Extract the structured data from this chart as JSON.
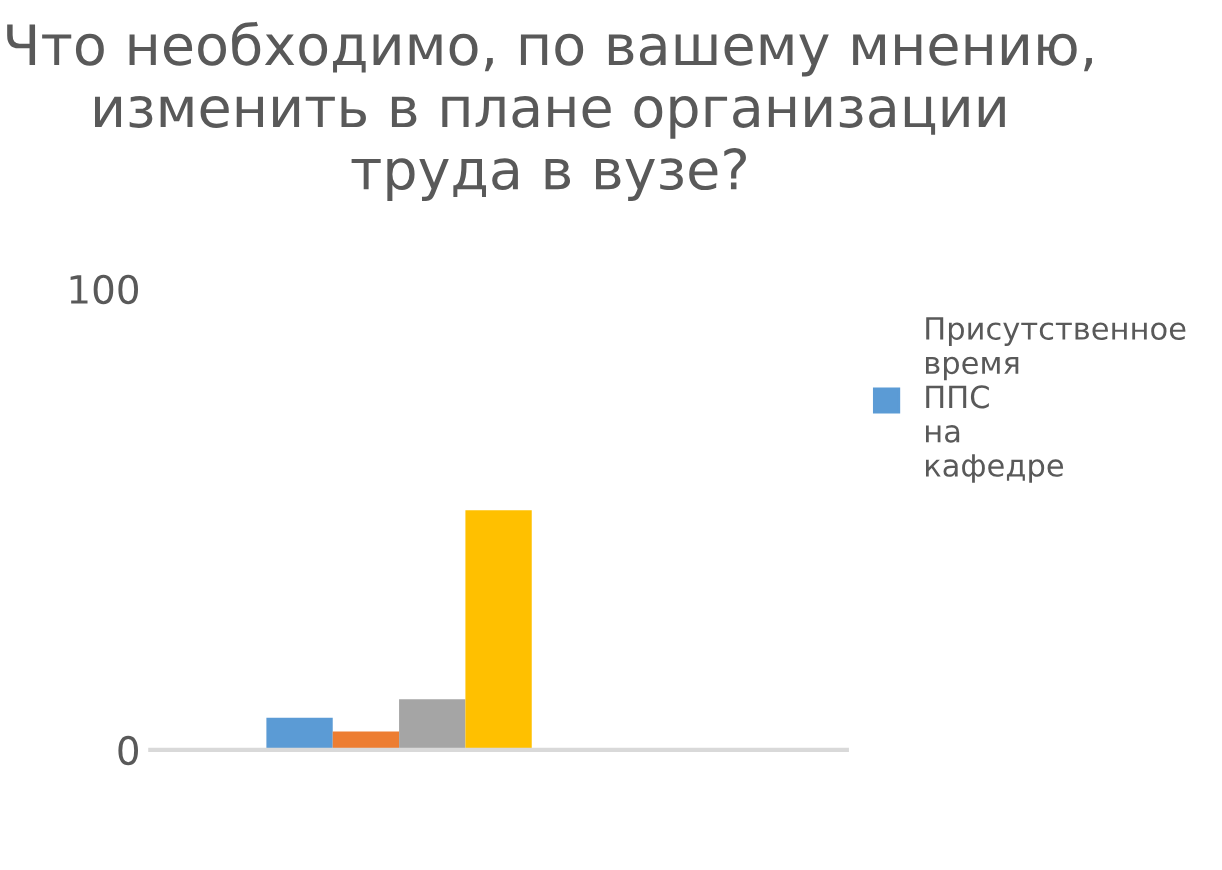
{
  "chart_data": {
    "type": "bar",
    "title": "Что необходимо, по вашему мнению, изменить в плане организации труда в вузе?",
    "categories": [
      null
    ],
    "series": [
      {
        "name": "Присутственное время ППС на кафедре",
        "color": "#5b9bd5",
        "values": [
          7
        ]
      },
      {
        "color": "#ed7d31",
        "values": [
          4
        ]
      },
      {
        "color": "#a5a5a5",
        "values": [
          11
        ]
      },
      {
        "color": "#ffc000",
        "values": [
          52
        ]
      }
    ],
    "ylim": [
      0,
      100
    ],
    "yticks": [
      0,
      100
    ],
    "grid": false,
    "legend": "right"
  }
}
